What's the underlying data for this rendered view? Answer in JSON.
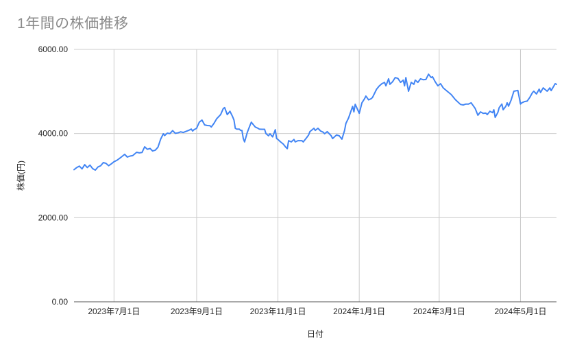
{
  "page": {
    "background": "#ffffff"
  },
  "style": {
    "title_color": "#8a8a8a",
    "tick_label_color": "#222222",
    "axis_title_color": "#222222",
    "grid_color": "#cccccc",
    "axis_line_color": "#555555",
    "line_color": "#4285f4"
  },
  "chart_data": {
    "type": "line",
    "title": "1年間の株価推移",
    "xlabel": "日付",
    "ylabel": "株価(円)",
    "ylim": [
      0,
      6000
    ],
    "grid": true,
    "legend": "none",
    "x_domain": [
      "2023-06-01",
      "2024-05-28"
    ],
    "y_ticks": [
      {
        "value": 0,
        "label": "0.00"
      },
      {
        "value": 2000,
        "label": "2000.00"
      },
      {
        "value": 4000,
        "label": "4000.00"
      },
      {
        "value": 6000,
        "label": "6000.00"
      }
    ],
    "x_ticks": [
      {
        "date": "2023-07-01",
        "label": "2023年7月1日"
      },
      {
        "date": "2023-09-01",
        "label": "2023年9月1日"
      },
      {
        "date": "2023-11-01",
        "label": "2023年11月1日"
      },
      {
        "date": "2024-01-01",
        "label": "2024年1月1日"
      },
      {
        "date": "2024-03-01",
        "label": "2024年3月1日"
      },
      {
        "date": "2024-05-01",
        "label": "2024年5月1日"
      }
    ],
    "points": [
      [
        "2023-06-01",
        3140
      ],
      [
        "2023-06-03",
        3190
      ],
      [
        "2023-06-05",
        3225
      ],
      [
        "2023-06-07",
        3160
      ],
      [
        "2023-06-09",
        3260
      ],
      [
        "2023-06-11",
        3190
      ],
      [
        "2023-06-13",
        3250
      ],
      [
        "2023-06-15",
        3165
      ],
      [
        "2023-06-17",
        3130
      ],
      [
        "2023-06-19",
        3205
      ],
      [
        "2023-06-21",
        3235
      ],
      [
        "2023-06-23",
        3310
      ],
      [
        "2023-06-25",
        3290
      ],
      [
        "2023-06-27",
        3235
      ],
      [
        "2023-06-29",
        3280
      ],
      [
        "2023-07-01",
        3330
      ],
      [
        "2023-07-03",
        3360
      ],
      [
        "2023-07-05",
        3405
      ],
      [
        "2023-07-07",
        3455
      ],
      [
        "2023-07-09",
        3505
      ],
      [
        "2023-07-11",
        3440
      ],
      [
        "2023-07-13",
        3465
      ],
      [
        "2023-07-15",
        3475
      ],
      [
        "2023-07-18",
        3555
      ],
      [
        "2023-07-20",
        3540
      ],
      [
        "2023-07-22",
        3550
      ],
      [
        "2023-07-24",
        3685
      ],
      [
        "2023-07-26",
        3625
      ],
      [
        "2023-07-28",
        3645
      ],
      [
        "2023-07-30",
        3585
      ],
      [
        "2023-08-01",
        3605
      ],
      [
        "2023-08-03",
        3675
      ],
      [
        "2023-08-05",
        3865
      ],
      [
        "2023-08-07",
        3995
      ],
      [
        "2023-08-08",
        3950
      ],
      [
        "2023-08-10",
        4010
      ],
      [
        "2023-08-12",
        4000
      ],
      [
        "2023-08-14",
        4070
      ],
      [
        "2023-08-16",
        4005
      ],
      [
        "2023-08-18",
        4015
      ],
      [
        "2023-08-20",
        4040
      ],
      [
        "2023-08-22",
        4025
      ],
      [
        "2023-08-24",
        4050
      ],
      [
        "2023-08-26",
        4075
      ],
      [
        "2023-08-28",
        4105
      ],
      [
        "2023-08-29",
        4060
      ],
      [
        "2023-08-30",
        4090
      ],
      [
        "2023-09-01",
        4125
      ],
      [
        "2023-09-03",
        4270
      ],
      [
        "2023-09-05",
        4320
      ],
      [
        "2023-09-07",
        4205
      ],
      [
        "2023-09-09",
        4190
      ],
      [
        "2023-09-11",
        4185
      ],
      [
        "2023-09-12",
        4155
      ],
      [
        "2023-09-14",
        4240
      ],
      [
        "2023-09-16",
        4350
      ],
      [
        "2023-09-19",
        4450
      ],
      [
        "2023-09-21",
        4595
      ],
      [
        "2023-09-22",
        4615
      ],
      [
        "2023-09-24",
        4450
      ],
      [
        "2023-09-26",
        4530
      ],
      [
        "2023-09-28",
        4400
      ],
      [
        "2023-09-29",
        4320
      ],
      [
        "2023-09-30",
        4125
      ],
      [
        "2023-10-01",
        4105
      ],
      [
        "2023-10-03",
        4105
      ],
      [
        "2023-10-04",
        4075
      ],
      [
        "2023-10-05",
        4075
      ],
      [
        "2023-10-06",
        3880
      ],
      [
        "2023-10-07",
        3800
      ],
      [
        "2023-10-09",
        4025
      ],
      [
        "2023-10-11",
        4190
      ],
      [
        "2023-10-12",
        4270
      ],
      [
        "2023-10-15",
        4155
      ],
      [
        "2023-10-17",
        4125
      ],
      [
        "2023-10-18",
        4105
      ],
      [
        "2023-10-20",
        4100
      ],
      [
        "2023-10-22",
        4100
      ],
      [
        "2023-10-23",
        4000
      ],
      [
        "2023-10-25",
        3945
      ],
      [
        "2023-10-26",
        3995
      ],
      [
        "2023-10-28",
        3920
      ],
      [
        "2023-10-30",
        4090
      ],
      [
        "2023-10-31",
        3880
      ],
      [
        "2023-11-01",
        3860
      ],
      [
        "2023-11-03",
        3800
      ],
      [
        "2023-11-05",
        3750
      ],
      [
        "2023-11-07",
        3670
      ],
      [
        "2023-11-08",
        3640
      ],
      [
        "2023-11-09",
        3830
      ],
      [
        "2023-11-11",
        3800
      ],
      [
        "2023-11-13",
        3860
      ],
      [
        "2023-11-14",
        3800
      ],
      [
        "2023-11-16",
        3830
      ],
      [
        "2023-11-18",
        3830
      ],
      [
        "2023-11-19",
        3830
      ],
      [
        "2023-11-20",
        3800
      ],
      [
        "2023-11-22",
        3880
      ],
      [
        "2023-11-24",
        3965
      ],
      [
        "2023-11-25",
        4045
      ],
      [
        "2023-11-28",
        4125
      ],
      [
        "2023-11-29",
        4075
      ],
      [
        "2023-12-01",
        4125
      ],
      [
        "2023-12-03",
        4060
      ],
      [
        "2023-12-05",
        4030
      ],
      [
        "2023-12-06",
        3995
      ],
      [
        "2023-12-08",
        4045
      ],
      [
        "2023-12-11",
        3945
      ],
      [
        "2023-12-12",
        3880
      ],
      [
        "2023-12-15",
        3965
      ],
      [
        "2023-12-17",
        3945
      ],
      [
        "2023-12-19",
        3865
      ],
      [
        "2023-12-21",
        4075
      ],
      [
        "2023-12-22",
        4240
      ],
      [
        "2023-12-24",
        4370
      ],
      [
        "2023-12-27",
        4645
      ],
      [
        "2023-12-28",
        4515
      ],
      [
        "2023-12-29",
        4695
      ],
      [
        "2024-01-01",
        4480
      ],
      [
        "2024-01-02",
        4600
      ],
      [
        "2024-01-03",
        4730
      ],
      [
        "2024-01-05",
        4830
      ],
      [
        "2024-01-06",
        4890
      ],
      [
        "2024-01-08",
        4800
      ],
      [
        "2024-01-10",
        4830
      ],
      [
        "2024-01-11",
        4860
      ],
      [
        "2024-01-14",
        5055
      ],
      [
        "2024-01-16",
        5130
      ],
      [
        "2024-01-18",
        5185
      ],
      [
        "2024-01-20",
        5215
      ],
      [
        "2024-01-21",
        5135
      ],
      [
        "2024-01-23",
        5300
      ],
      [
        "2024-01-24",
        5170
      ],
      [
        "2024-01-26",
        5230
      ],
      [
        "2024-01-28",
        5330
      ],
      [
        "2024-01-30",
        5310
      ],
      [
        "2024-02-01",
        5215
      ],
      [
        "2024-02-03",
        5270
      ],
      [
        "2024-02-04",
        5135
      ],
      [
        "2024-02-05",
        5330
      ],
      [
        "2024-02-07",
        5005
      ],
      [
        "2024-02-09",
        5215
      ],
      [
        "2024-02-11",
        5170
      ],
      [
        "2024-02-12",
        5270
      ],
      [
        "2024-02-14",
        5215
      ],
      [
        "2024-02-16",
        5300
      ],
      [
        "2024-02-18",
        5280
      ],
      [
        "2024-02-20",
        5285
      ],
      [
        "2024-02-22",
        5410
      ],
      [
        "2024-02-24",
        5330
      ],
      [
        "2024-02-25",
        5350
      ],
      [
        "2024-02-27",
        5230
      ],
      [
        "2024-02-29",
        5135
      ],
      [
        "2024-03-02",
        5185
      ],
      [
        "2024-03-04",
        5085
      ],
      [
        "2024-03-07",
        5005
      ],
      [
        "2024-03-10",
        4925
      ],
      [
        "2024-03-13",
        4810
      ],
      [
        "2024-03-15",
        4750
      ],
      [
        "2024-03-17",
        4690
      ],
      [
        "2024-03-19",
        4680
      ],
      [
        "2024-03-21",
        4700
      ],
      [
        "2024-03-23",
        4700
      ],
      [
        "2024-03-25",
        4730
      ],
      [
        "2024-03-28",
        4595
      ],
      [
        "2024-03-30",
        4435
      ],
      [
        "2024-04-01",
        4515
      ],
      [
        "2024-04-03",
        4480
      ],
      [
        "2024-04-05",
        4485
      ],
      [
        "2024-04-06",
        4450
      ],
      [
        "2024-04-08",
        4530
      ],
      [
        "2024-04-10",
        4495
      ],
      [
        "2024-04-11",
        4565
      ],
      [
        "2024-04-12",
        4385
      ],
      [
        "2024-04-14",
        4500
      ],
      [
        "2024-04-15",
        4615
      ],
      [
        "2024-04-17",
        4700
      ],
      [
        "2024-04-18",
        4565
      ],
      [
        "2024-04-20",
        4650
      ],
      [
        "2024-04-21",
        4730
      ],
      [
        "2024-04-22",
        4650
      ],
      [
        "2024-04-24",
        4800
      ],
      [
        "2024-04-26",
        5005
      ],
      [
        "2024-04-29",
        5025
      ],
      [
        "2024-05-01",
        4700
      ],
      [
        "2024-05-02",
        4730
      ],
      [
        "2024-05-04",
        4760
      ],
      [
        "2024-05-06",
        4770
      ],
      [
        "2024-05-08",
        4860
      ],
      [
        "2024-05-10",
        4975
      ],
      [
        "2024-05-11",
        5005
      ],
      [
        "2024-05-13",
        4940
      ],
      [
        "2024-05-15",
        5055
      ],
      [
        "2024-05-16",
        4975
      ],
      [
        "2024-05-18",
        5085
      ],
      [
        "2024-05-21",
        5005
      ],
      [
        "2024-05-23",
        5085
      ],
      [
        "2024-05-24",
        5020
      ],
      [
        "2024-05-27",
        5185
      ],
      [
        "2024-05-28",
        5170
      ]
    ]
  }
}
